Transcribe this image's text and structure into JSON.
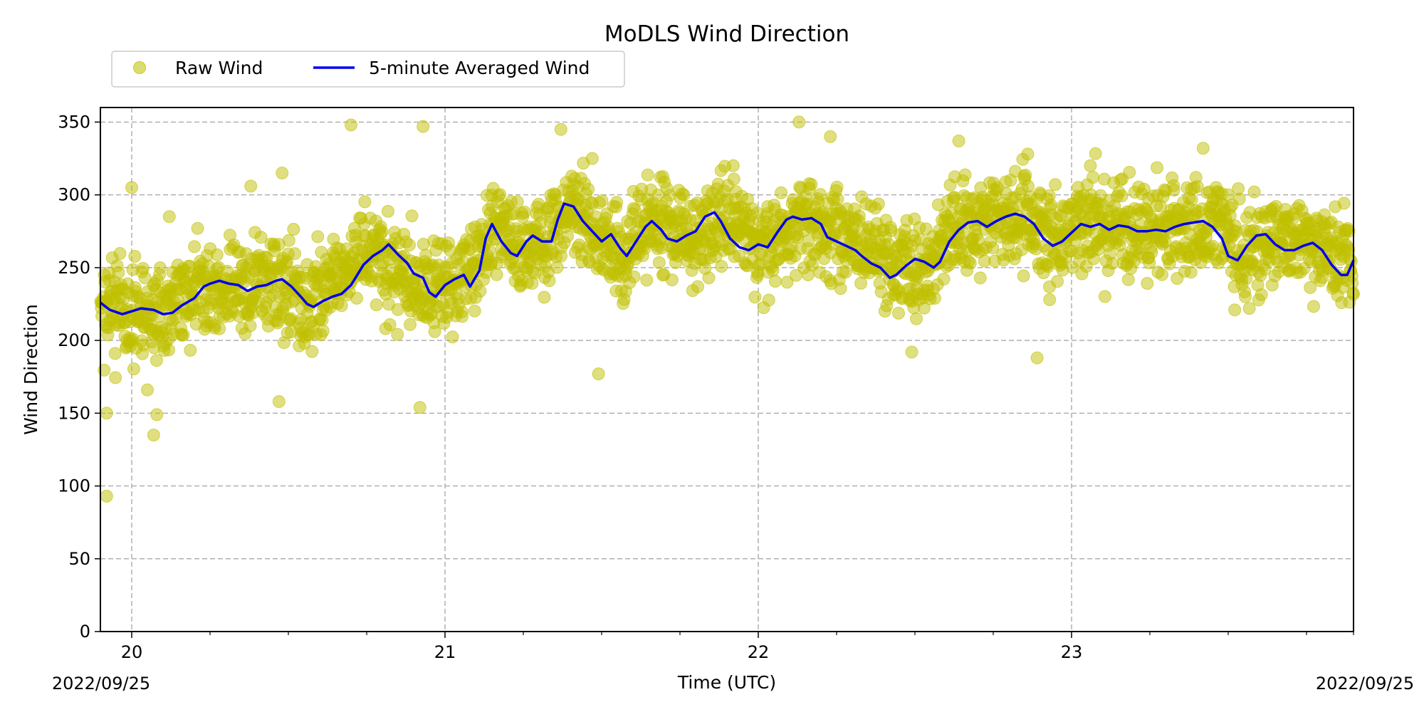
{
  "chart_data": {
    "type": "scatter",
    "title": "MoDLS Wind Direction",
    "xlabel": "Time (UTC)",
    "ylabel": "Wind Direction",
    "xlim": [
      19.9,
      23.9
    ],
    "ylim": [
      0,
      360
    ],
    "grid": true,
    "legend_position": "top-left, above plot",
    "x_major_ticks": [
      {
        "value": 20,
        "label": "20"
      },
      {
        "value": 21,
        "label": "21"
      },
      {
        "value": 22,
        "label": "22"
      },
      {
        "value": 23,
        "label": "23"
      }
    ],
    "x_minor_ticks": [
      20.25,
      20.5,
      20.75,
      21.25,
      21.5,
      21.75,
      22.25,
      22.5,
      22.75,
      23.25,
      23.5,
      23.75,
      23.9
    ],
    "y_ticks": [
      {
        "value": 0,
        "label": "0"
      },
      {
        "value": 50,
        "label": "50"
      },
      {
        "value": 100,
        "label": "100"
      },
      {
        "value": 150,
        "label": "150"
      },
      {
        "value": 200,
        "label": "200"
      },
      {
        "value": 250,
        "label": "250"
      },
      {
        "value": 300,
        "label": "300"
      },
      {
        "value": 350,
        "label": "350"
      }
    ],
    "date_label_left": "2022/09/25",
    "date_label_right": "2022/09/25",
    "series": [
      {
        "name": "Raw Wind",
        "kind": "scatter",
        "color": "#bfbf00",
        "center_trend": [
          [
            19.9,
            222
          ],
          [
            20.1,
            218
          ],
          [
            20.25,
            238
          ],
          [
            20.45,
            240
          ],
          [
            20.55,
            224
          ],
          [
            20.75,
            258
          ],
          [
            20.95,
            235
          ],
          [
            21.05,
            240
          ],
          [
            21.15,
            275
          ],
          [
            21.3,
            262
          ],
          [
            21.4,
            292
          ],
          [
            21.55,
            258
          ],
          [
            21.65,
            278
          ],
          [
            21.8,
            272
          ],
          [
            21.9,
            285
          ],
          [
            22.0,
            262
          ],
          [
            22.15,
            283
          ],
          [
            22.25,
            278
          ],
          [
            22.35,
            262
          ],
          [
            22.45,
            245
          ],
          [
            22.55,
            250
          ],
          [
            22.65,
            280
          ],
          [
            22.85,
            285
          ],
          [
            22.95,
            268
          ],
          [
            23.05,
            278
          ],
          [
            23.25,
            276
          ],
          [
            23.45,
            282
          ],
          [
            23.55,
            258
          ],
          [
            23.65,
            272
          ],
          [
            23.8,
            262
          ],
          [
            23.9,
            255
          ]
        ],
        "outliers": [
          {
            "x": 19.92,
            "y": 93
          },
          {
            "x": 19.92,
            "y": 150
          },
          {
            "x": 20.05,
            "y": 166
          },
          {
            "x": 20.07,
            "y": 135
          },
          {
            "x": 20.08,
            "y": 149
          },
          {
            "x": 20.0,
            "y": 305
          },
          {
            "x": 20.12,
            "y": 285
          },
          {
            "x": 20.48,
            "y": 315
          },
          {
            "x": 20.38,
            "y": 306
          },
          {
            "x": 20.7,
            "y": 348
          },
          {
            "x": 20.93,
            "y": 347
          },
          {
            "x": 20.92,
            "y": 154
          },
          {
            "x": 20.47,
            "y": 158
          },
          {
            "x": 21.49,
            "y": 177
          },
          {
            "x": 21.37,
            "y": 345
          },
          {
            "x": 21.47,
            "y": 325
          },
          {
            "x": 21.92,
            "y": 320
          },
          {
            "x": 22.13,
            "y": 350
          },
          {
            "x": 22.23,
            "y": 340
          },
          {
            "x": 22.49,
            "y": 192
          },
          {
            "x": 22.64,
            "y": 337
          },
          {
            "x": 22.89,
            "y": 188
          },
          {
            "x": 22.86,
            "y": 328
          },
          {
            "x": 23.06,
            "y": 320
          },
          {
            "x": 23.42,
            "y": 332
          },
          {
            "x": 22.93,
            "y": 228
          }
        ]
      },
      {
        "name": "5-minute Averaged Wind",
        "kind": "line",
        "color": "#0000ee",
        "points": [
          [
            19.9,
            226
          ],
          [
            19.93,
            221
          ],
          [
            19.97,
            218
          ],
          [
            20.0,
            220
          ],
          [
            20.03,
            222
          ],
          [
            20.07,
            221
          ],
          [
            20.1,
            218
          ],
          [
            20.13,
            219
          ],
          [
            20.16,
            224
          ],
          [
            20.2,
            229
          ],
          [
            20.23,
            237
          ],
          [
            20.25,
            239
          ],
          [
            20.28,
            241
          ],
          [
            20.31,
            239
          ],
          [
            20.34,
            238
          ],
          [
            20.37,
            234
          ],
          [
            20.4,
            237
          ],
          [
            20.43,
            238
          ],
          [
            20.46,
            241
          ],
          [
            20.48,
            242
          ],
          [
            20.51,
            237
          ],
          [
            20.54,
            230
          ],
          [
            20.56,
            225
          ],
          [
            20.58,
            223
          ],
          [
            20.61,
            227
          ],
          [
            20.64,
            230
          ],
          [
            20.67,
            232
          ],
          [
            20.7,
            238
          ],
          [
            20.72,
            245
          ],
          [
            20.74,
            252
          ],
          [
            20.77,
            258
          ],
          [
            20.8,
            262
          ],
          [
            20.82,
            266
          ],
          [
            20.85,
            259
          ],
          [
            20.88,
            253
          ],
          [
            20.9,
            246
          ],
          [
            20.93,
            243
          ],
          [
            20.95,
            233
          ],
          [
            20.97,
            230
          ],
          [
            21.0,
            238
          ],
          [
            21.03,
            242
          ],
          [
            21.06,
            245
          ],
          [
            21.08,
            237
          ],
          [
            21.11,
            248
          ],
          [
            21.13,
            270
          ],
          [
            21.15,
            280
          ],
          [
            21.18,
            268
          ],
          [
            21.21,
            260
          ],
          [
            21.23,
            258
          ],
          [
            21.26,
            268
          ],
          [
            21.28,
            272
          ],
          [
            21.31,
            268
          ],
          [
            21.34,
            268
          ],
          [
            21.36,
            283
          ],
          [
            21.38,
            294
          ],
          [
            21.41,
            292
          ],
          [
            21.44,
            282
          ],
          [
            21.47,
            275
          ],
          [
            21.5,
            268
          ],
          [
            21.53,
            273
          ],
          [
            21.56,
            263
          ],
          [
            21.58,
            258
          ],
          [
            21.61,
            268
          ],
          [
            21.64,
            278
          ],
          [
            21.66,
            282
          ],
          [
            21.69,
            276
          ],
          [
            21.71,
            270
          ],
          [
            21.74,
            268
          ],
          [
            21.77,
            272
          ],
          [
            21.8,
            275
          ],
          [
            21.83,
            285
          ],
          [
            21.86,
            288
          ],
          [
            21.88,
            282
          ],
          [
            21.91,
            270
          ],
          [
            21.94,
            264
          ],
          [
            21.97,
            262
          ],
          [
            22.0,
            266
          ],
          [
            22.03,
            264
          ],
          [
            22.06,
            274
          ],
          [
            22.09,
            283
          ],
          [
            22.11,
            285
          ],
          [
            22.14,
            283
          ],
          [
            22.17,
            284
          ],
          [
            22.2,
            280
          ],
          [
            22.22,
            271
          ],
          [
            22.25,
            268
          ],
          [
            22.28,
            265
          ],
          [
            22.31,
            262
          ],
          [
            22.33,
            258
          ],
          [
            22.36,
            253
          ],
          [
            22.39,
            250
          ],
          [
            22.42,
            243
          ],
          [
            22.44,
            245
          ],
          [
            22.47,
            251
          ],
          [
            22.5,
            256
          ],
          [
            22.53,
            254
          ],
          [
            22.56,
            250
          ],
          [
            22.58,
            254
          ],
          [
            22.61,
            268
          ],
          [
            22.64,
            276
          ],
          [
            22.67,
            281
          ],
          [
            22.7,
            282
          ],
          [
            22.73,
            278
          ],
          [
            22.76,
            282
          ],
          [
            22.79,
            285
          ],
          [
            22.82,
            287
          ],
          [
            22.85,
            285
          ],
          [
            22.88,
            280
          ],
          [
            22.91,
            270
          ],
          [
            22.94,
            265
          ],
          [
            22.97,
            268
          ],
          [
            23.0,
            274
          ],
          [
            23.03,
            280
          ],
          [
            23.06,
            278
          ],
          [
            23.09,
            280
          ],
          [
            23.12,
            276
          ],
          [
            23.15,
            279
          ],
          [
            23.18,
            278
          ],
          [
            23.21,
            275
          ],
          [
            23.24,
            275
          ],
          [
            23.27,
            276
          ],
          [
            23.3,
            275
          ],
          [
            23.33,
            278
          ],
          [
            23.36,
            280
          ],
          [
            23.39,
            281
          ],
          [
            23.42,
            282
          ],
          [
            23.45,
            278
          ],
          [
            23.48,
            270
          ],
          [
            23.5,
            258
          ],
          [
            23.53,
            255
          ],
          [
            23.56,
            265
          ],
          [
            23.59,
            272
          ],
          [
            23.62,
            273
          ],
          [
            23.65,
            266
          ],
          [
            23.68,
            262
          ],
          [
            23.71,
            262
          ],
          [
            23.74,
            265
          ],
          [
            23.77,
            267
          ],
          [
            23.8,
            262
          ],
          [
            23.83,
            252
          ],
          [
            23.86,
            245
          ],
          [
            23.88,
            245
          ],
          [
            23.9,
            255
          ]
        ]
      }
    ]
  }
}
